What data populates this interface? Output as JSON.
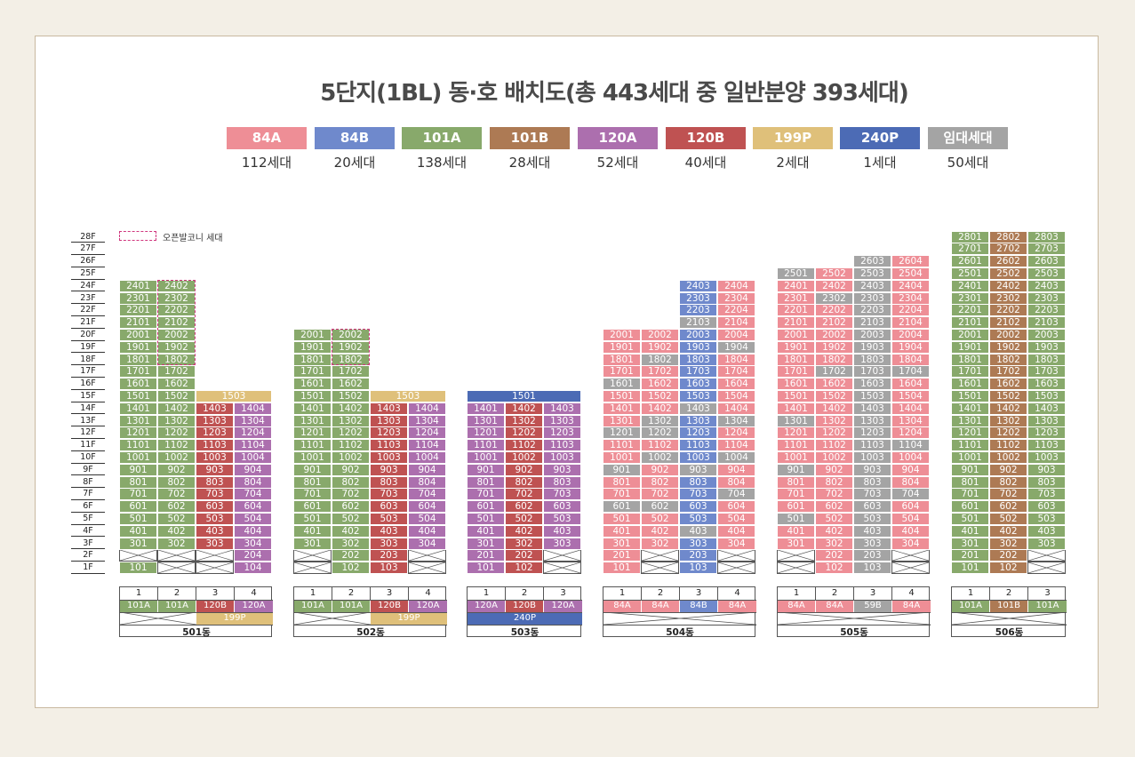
{
  "title": "5단지(1BL) 동·호 배치도(총 443세대 중 일반분양 393세대)",
  "colors": {
    "84A": "#ee8e96",
    "84B": "#6f89cc",
    "101A": "#88a96b",
    "101B": "#ad7a54",
    "120A": "#ac6fae",
    "120B": "#bf5252",
    "199P": "#dfc07a",
    "240P": "#4c6bb5",
    "rent": "#a4a4a4"
  },
  "legend": [
    {
      "type": "84A",
      "label": "84A",
      "count": "112세대"
    },
    {
      "type": "84B",
      "label": "84B",
      "count": "20세대"
    },
    {
      "type": "101A",
      "label": "101A",
      "count": "138세대"
    },
    {
      "type": "101B",
      "label": "101B",
      "count": "28세대"
    },
    {
      "type": "120A",
      "label": "120A",
      "count": "52세대"
    },
    {
      "type": "120B",
      "label": "120B",
      "count": "40세대"
    },
    {
      "type": "199P",
      "label": "199P",
      "count": "2세대"
    },
    {
      "type": "240P",
      "label": "240P",
      "count": "1세대"
    },
    {
      "type": "rent",
      "label": "임대세대",
      "count": "50세대"
    }
  ],
  "floors": [
    "28F",
    "27F",
    "26F",
    "25F",
    "24F",
    "23F",
    "22F",
    "21F",
    "20F",
    "19F",
    "18F",
    "17F",
    "16F",
    "15F",
    "14F",
    "13F",
    "12F",
    "11F",
    "10F",
    "9F",
    "8F",
    "7F",
    "6F",
    "5F",
    "4F",
    "3F",
    "2F",
    "1F"
  ],
  "balcony_legend": "오픈발코니 세대",
  "buildings": [
    {
      "name": "501동",
      "lines": [
        "1",
        "2",
        "3",
        "4"
      ],
      "line_types": [
        "101A",
        "101A",
        "120B",
        "120A"
      ],
      "penthouse_label": "199P",
      "top": {
        "1": 24,
        "2": 24,
        "3": 14,
        "4": 14
      },
      "penthouse_floor": 15,
      "empty": {
        "1": [
          2
        ],
        "2": [
          1,
          2
        ],
        "3": [
          1,
          2
        ],
        "4": []
      },
      "balcony": {
        "2": [
          18,
          24
        ]
      },
      "rent": {}
    },
    {
      "name": "502동",
      "lines": [
        "1",
        "2",
        "3",
        "4"
      ],
      "line_types": [
        "101A",
        "101A",
        "120B",
        "120A"
      ],
      "penthouse_label": "199P",
      "top": {
        "1": 20,
        "2": 20,
        "3": 14,
        "4": 14
      },
      "penthouse_floor": 15,
      "empty": {
        "1": [
          1,
          2
        ],
        "2": [],
        "3": [],
        "4": [
          1,
          2
        ]
      },
      "balcony": {
        "2": [
          18,
          20
        ]
      },
      "rent": {}
    },
    {
      "name": "503동",
      "lines": [
        "1",
        "2",
        "3"
      ],
      "line_types": [
        "120A",
        "120B",
        "120A"
      ],
      "penthouse_label": "240P",
      "top": {
        "1": 14,
        "2": 14,
        "3": 14
      },
      "penthouse_floor": 15,
      "empty": {
        "1": [],
        "2": [],
        "3": [
          1,
          2
        ]
      },
      "balcony": {},
      "rent": {}
    },
    {
      "name": "504동",
      "lines": [
        "1",
        "2",
        "3",
        "4"
      ],
      "line_types": [
        "84A",
        "84A",
        "84B",
        "84A"
      ],
      "top": {
        "1": 20,
        "2": 20,
        "3": 24,
        "4": 24
      },
      "empty": {
        "1": [],
        "2": [
          1,
          2
        ],
        "3": [],
        "4": [
          1,
          2
        ]
      },
      "balcony": {},
      "rent": {
        "1": [
          16,
          12,
          9,
          6
        ],
        "2": [
          18,
          13,
          12,
          10,
          6
        ],
        "3": [
          21,
          14,
          9,
          4
        ],
        "4": [
          19,
          13,
          10,
          7
        ]
      }
    },
    {
      "name": "505동",
      "lines": [
        "1",
        "2",
        "3",
        "4"
      ],
      "line_types": [
        "84A",
        "84A",
        "59B",
        "84A"
      ],
      "top": {
        "1": 25,
        "2": 25,
        "3": 26,
        "4": 26
      },
      "empty": {
        "1": [
          1,
          2
        ],
        "2": [],
        "3": [],
        "4": [
          1,
          2
        ]
      },
      "balcony": {},
      "rent": {
        "1": [
          25,
          13,
          9,
          5
        ],
        "2": [
          23,
          17
        ],
        "3": [
          25,
          23,
          1,
          2,
          3,
          4,
          5,
          6,
          7,
          8,
          9,
          10,
          11,
          12,
          13,
          14,
          15,
          16,
          17,
          18,
          19,
          20,
          21,
          22,
          24,
          26
        ],
        "4": [
          17,
          11,
          7
        ]
      }
    },
    {
      "name": "506동",
      "lines": [
        "1",
        "2",
        "3"
      ],
      "line_types": [
        "101A",
        "101B",
        "101A"
      ],
      "top": {
        "1": 28,
        "2": 28,
        "3": 28
      },
      "empty": {
        "1": [],
        "2": [],
        "3": [
          1,
          2
        ]
      },
      "balcony": {},
      "rent": {}
    }
  ]
}
